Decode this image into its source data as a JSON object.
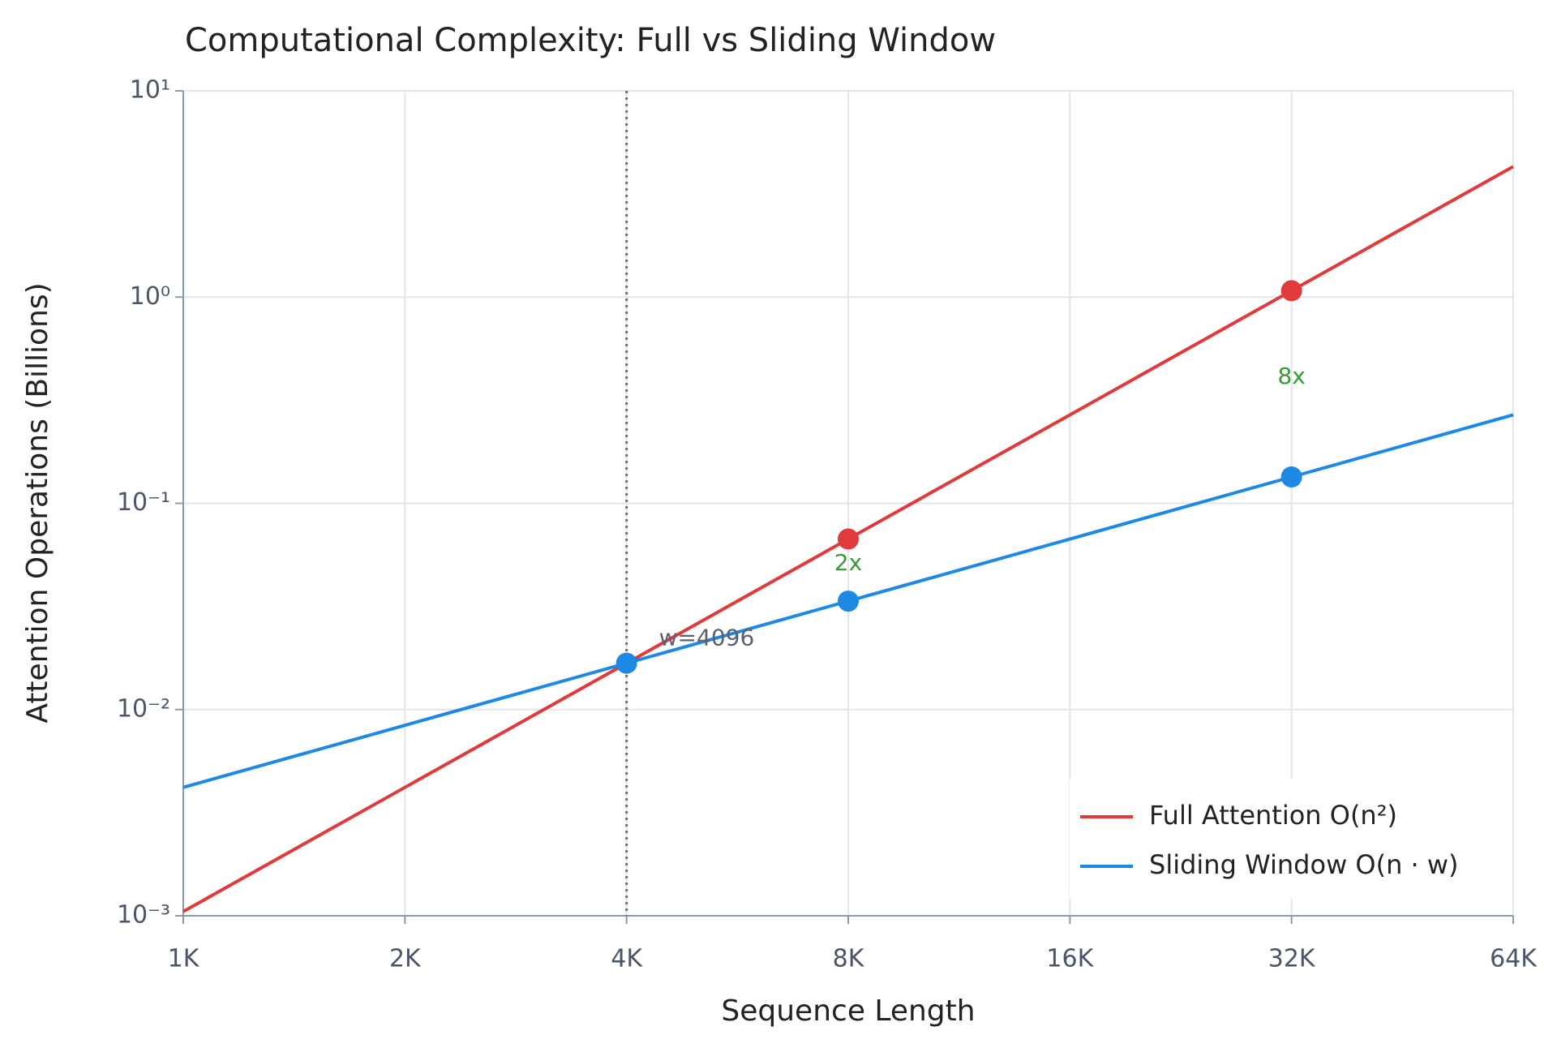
{
  "chart_data": {
    "type": "line",
    "title": "Computational Complexity: Full vs Sliding Window",
    "x_label": "Sequence Length",
    "y_label": "Attention Operations (Billions)",
    "x": [
      1024,
      2048,
      4096,
      8192,
      16384,
      32768,
      65536
    ],
    "series": [
      {
        "name": "Full Attention O(n²)",
        "color": "#e03a3a",
        "values": [
          0.001048576,
          0.004194304,
          0.016777216,
          0.067108864,
          0.268435456,
          1.073741824,
          4.294967296
        ],
        "marker_x": [
          8192,
          32768
        ],
        "marker_values": [
          0.067108864,
          1.073741824
        ]
      },
      {
        "name": "Sliding Window O(n · w)",
        "color": "#1e88e5",
        "values": [
          0.004194304,
          0.008388608,
          0.016777216,
          0.033554432,
          0.067108864,
          0.134217728,
          0.268435456
        ],
        "marker_x": [
          4096,
          8192,
          32768
        ],
        "marker_values": [
          0.016777216,
          0.033554432,
          0.134217728
        ]
      }
    ],
    "reference_line": {
      "x": 4096
    },
    "annotations": [
      {
        "text": "w=4096",
        "color": "#5a6270"
      },
      {
        "text": "2x",
        "color": "#3a9a3a"
      },
      {
        "text": "8x",
        "color": "#3a9a3a"
      }
    ],
    "xscale": "log",
    "yscale": "log",
    "xlim": [
      1024,
      65536
    ],
    "xticks": [
      {
        "value": 1024,
        "label": "1K"
      },
      {
        "value": 2048,
        "label": "2K"
      },
      {
        "value": 4096,
        "label": "4K"
      },
      {
        "value": 8192,
        "label": "8K"
      },
      {
        "value": 16384,
        "label": "16K"
      },
      {
        "value": 32768,
        "label": "32K"
      },
      {
        "value": 65536,
        "label": "64K"
      }
    ],
    "ylim": [
      0.001,
      10
    ],
    "yticks": [
      {
        "value": 0.001,
        "label": "10⁻³"
      },
      {
        "value": 0.01,
        "label": "10⁻²"
      },
      {
        "value": 0.1,
        "label": "10⁻¹"
      },
      {
        "value": 1,
        "label": "10⁰"
      },
      {
        "value": 10,
        "label": "10¹"
      }
    ],
    "grid": true,
    "legend": "lower right"
  }
}
